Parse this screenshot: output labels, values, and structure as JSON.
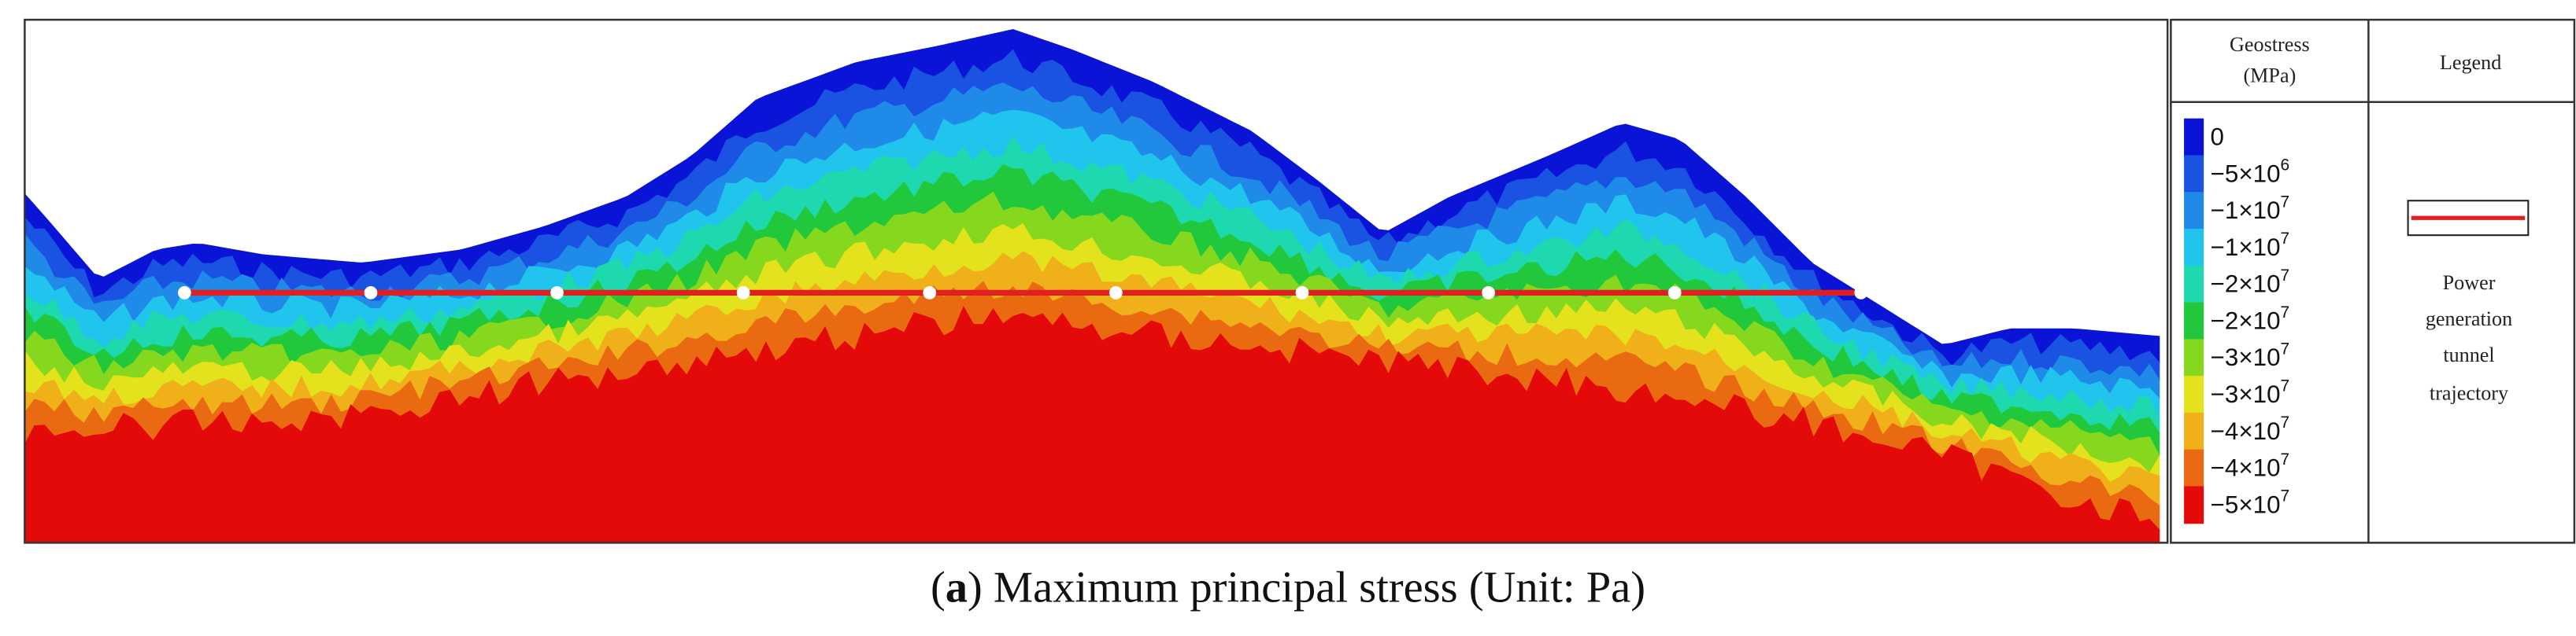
{
  "figure": {
    "caption": {
      "open": "(",
      "label": "a",
      "rest": ") Maximum principal stress (Unit: Pa)"
    },
    "colorbar": {
      "title": [
        "Geostress",
        "(MPa)"
      ],
      "colors": [
        "#0a14d6",
        "#1a52e2",
        "#1f8ae8",
        "#20c4ec",
        "#1ed9b0",
        "#22c83c",
        "#86d81e",
        "#e4e21c",
        "#f0b01a",
        "#ea6a12",
        "#e40a0a"
      ],
      "labels": [
        {
          "base": "0"
        },
        {
          "base": "−5×10",
          "exp": "6"
        },
        {
          "base": "−1×10",
          "exp": "7"
        },
        {
          "base": "−1×10",
          "exp": "7"
        },
        {
          "base": "−2×10",
          "exp": "7"
        },
        {
          "base": "−2×10",
          "exp": "7"
        },
        {
          "base": "−3×10",
          "exp": "7"
        },
        {
          "base": "−3×10",
          "exp": "7"
        },
        {
          "base": "−4×10",
          "exp": "7"
        },
        {
          "base": "−4×10",
          "exp": "7"
        },
        {
          "base": "−5×10",
          "exp": "7"
        }
      ]
    },
    "legend": {
      "title": "Legend",
      "entry": [
        "Power",
        "generation",
        "tunnel",
        "trajectory"
      ],
      "color": "#e02020"
    }
  }
}
